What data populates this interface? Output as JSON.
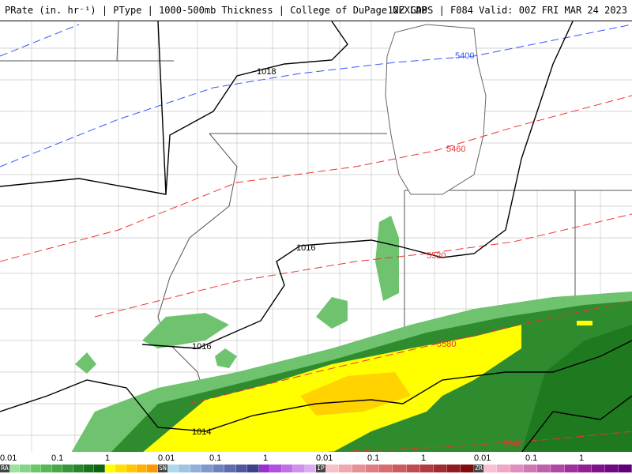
{
  "header": {
    "left": "PRate (in. hr⁻¹) | PType | 1000-500mb Thickness | College of DuPage NEXLAB",
    "right": "12Z GDPS | F084 Valid: 00Z FRI MAR 24 2023"
  },
  "map": {
    "pressure_labels": [
      "1018",
      "1016",
      "1016",
      "1014"
    ],
    "thickness_labels": [
      "5400",
      "5460",
      "5520",
      "5580",
      "5640"
    ],
    "colors": {
      "pressure": "#000000",
      "thickness_cold": "#3355ff",
      "thickness_warm": "#ee3333",
      "rain_light": "#6fc36f",
      "rain_mod": "#1f7a1f",
      "rain_heavy": "#0b5a0b",
      "rain_yellow": "#ffff00",
      "rain_gold": "#ffd200",
      "lake": "#ffffff"
    }
  },
  "legend": {
    "groups": [
      {
        "label": "RA",
        "ticks": [
          "0.01",
          "0.1",
          "1"
        ],
        "colors": [
          "#9fe09f",
          "#86d486",
          "#6cc66c",
          "#58b858",
          "#46a846",
          "#36963a",
          "#27852b",
          "#1a741e",
          "#0d630f",
          "#ffff00",
          "#ffe000",
          "#ffc800",
          "#ffb000",
          "#ff9800"
        ]
      },
      {
        "label": "SN",
        "ticks": [
          "0.01",
          "0.1",
          "1"
        ],
        "colors": [
          "#b0d8ec",
          "#a0c4e4",
          "#90b0da",
          "#8098cc",
          "#7082be",
          "#606cae",
          "#50569c",
          "#40408c",
          "#9b30d0",
          "#b050e0",
          "#c070e4",
          "#d090ec",
          "#dcacf0"
        ]
      },
      {
        "label": "IP",
        "ticks": [
          "0.01",
          "0.1",
          "1"
        ],
        "colors": [
          "#f8c0c8",
          "#f0a8b0",
          "#e89098",
          "#e07c84",
          "#d86c70",
          "#cc5c60",
          "#c04c50",
          "#b03c40",
          "#a02c30",
          "#901c20",
          "#800c10"
        ]
      },
      {
        "label": "ZR",
        "ticks": [
          "0.01",
          "0.1",
          "1"
        ],
        "colors": [
          "#f8c0d0",
          "#f0a8c4",
          "#e090bc",
          "#d078b4",
          "#c060ac",
          "#b048a4",
          "#a0309c",
          "#902094",
          "#80108c",
          "#700884",
          "#60007c"
        ]
      }
    ]
  }
}
